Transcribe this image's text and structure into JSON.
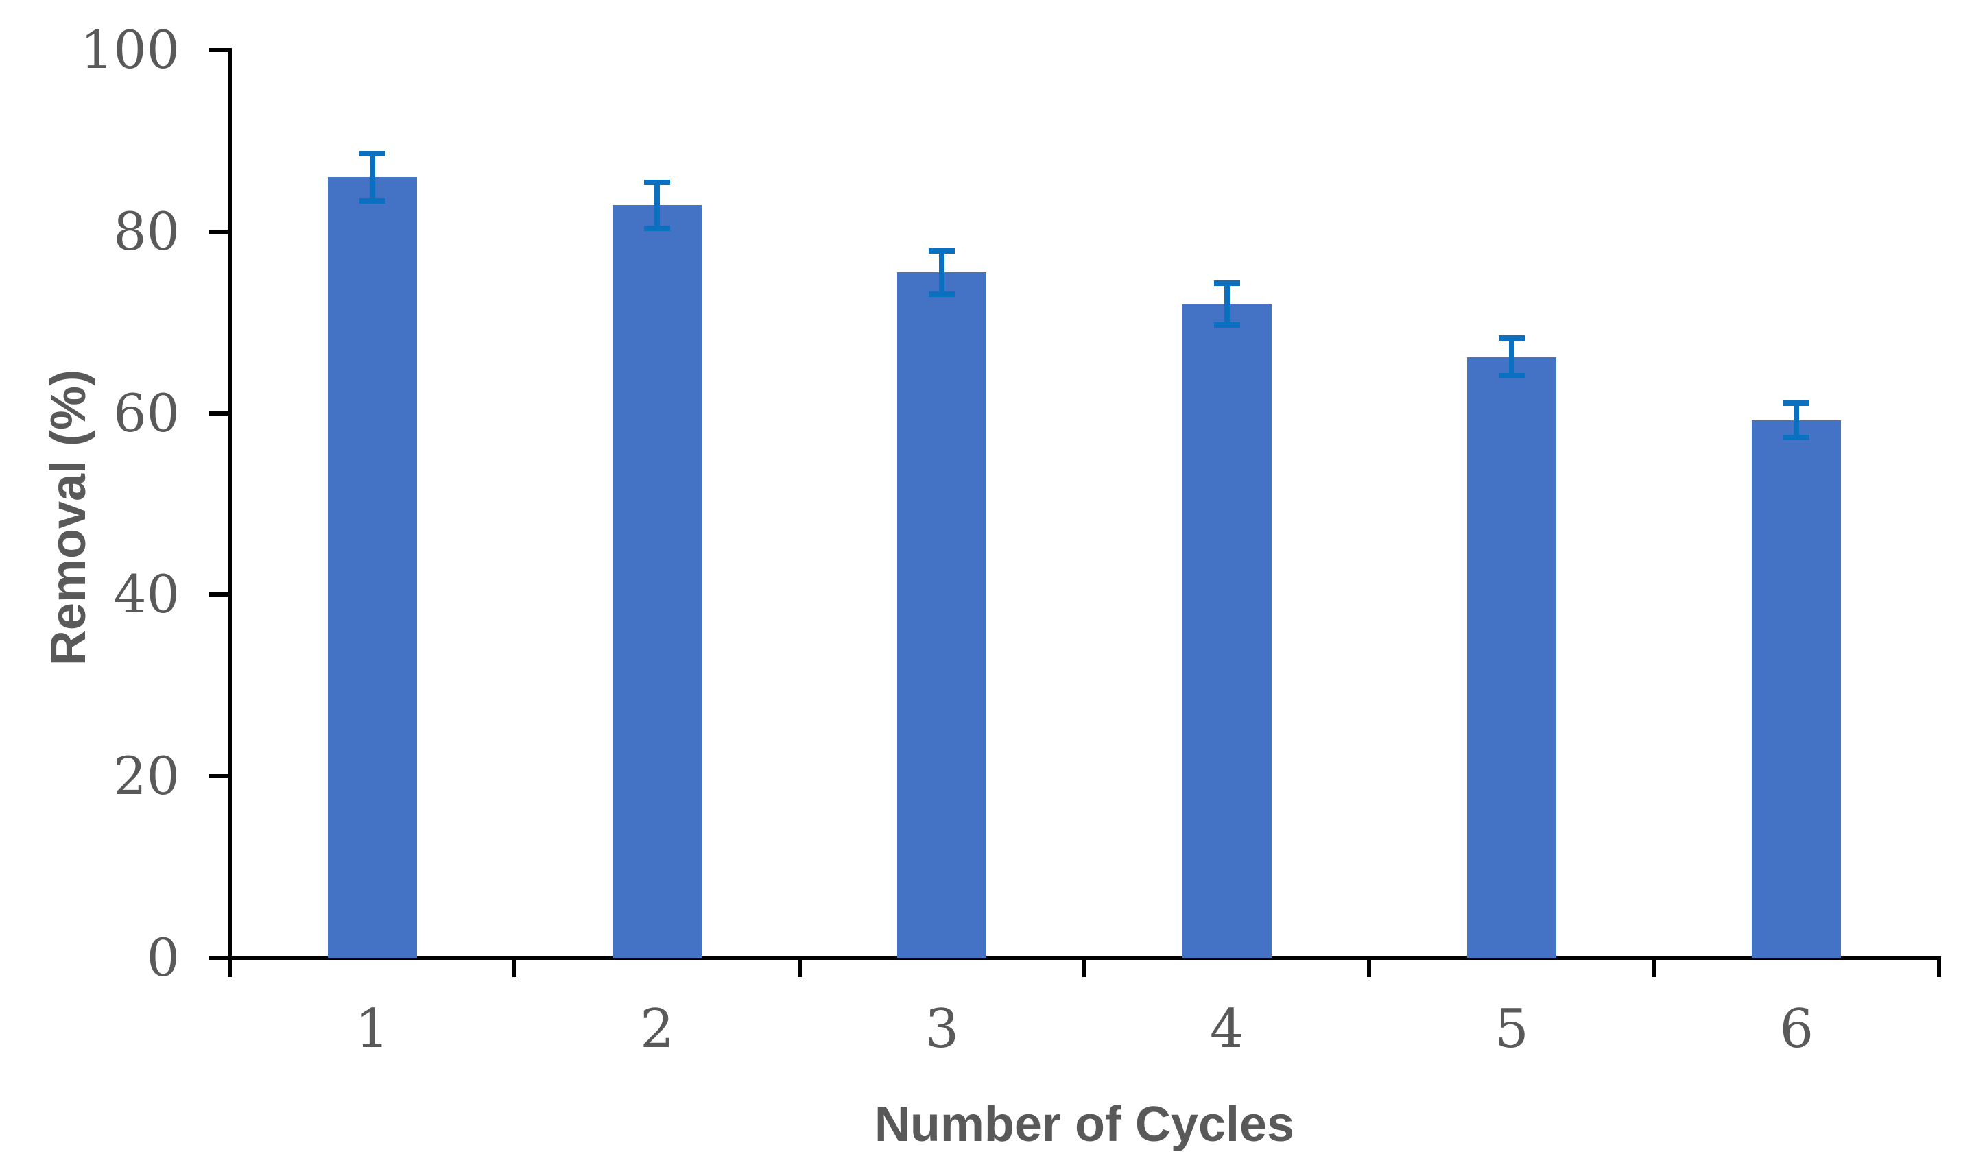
{
  "chart_data": {
    "type": "bar",
    "title": "",
    "xlabel": "Number of Cycles",
    "ylabel": "Removal (%)",
    "categories": [
      "1",
      "2",
      "3",
      "4",
      "5",
      "6"
    ],
    "series": [
      {
        "name": "Removal (%)",
        "values": [
          86,
          82.9,
          75.5,
          72,
          66.2,
          59.2
        ],
        "errors": [
          2.6,
          2.5,
          2.4,
          2.3,
          2.1,
          1.9
        ]
      }
    ],
    "ylim": [
      0,
      100
    ],
    "yticks": [
      0,
      20,
      40,
      60,
      80,
      100
    ],
    "grid": false,
    "legend": false,
    "colors": {
      "bar": "#4472C4",
      "error_bar": "#0B70C0",
      "axis": "#000000",
      "text": "#595959"
    }
  }
}
